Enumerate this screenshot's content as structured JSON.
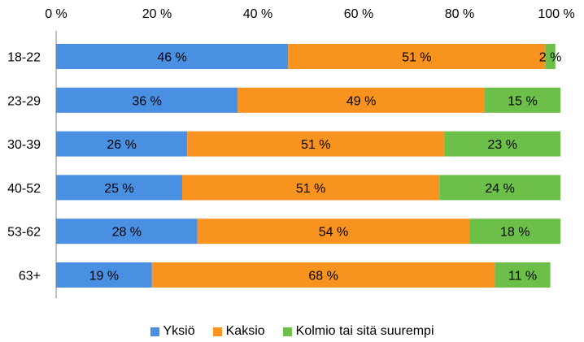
{
  "chart_data": {
    "type": "bar",
    "orientation": "horizontal",
    "stacked": true,
    "categories": [
      "18-22",
      "23-29",
      "30-39",
      "40-52",
      "53-62",
      "63+"
    ],
    "series": [
      {
        "name": "Yksiö",
        "color": "#4a90e2",
        "values": [
          46,
          36,
          26,
          25,
          28,
          19
        ],
        "labels": [
          "46 %",
          "36 %",
          "26 %",
          "25 %",
          "28 %",
          "19 %"
        ]
      },
      {
        "name": "Kaksio",
        "color": "#f7931e",
        "values": [
          51,
          49,
          51,
          51,
          54,
          68
        ],
        "labels": [
          "51 %",
          "49 %",
          "51 %",
          "51 %",
          "54 %",
          "68 %"
        ]
      },
      {
        "name": "Kolmio tai sitä suurempi",
        "color": "#6cc04a",
        "values": [
          2,
          15,
          23,
          24,
          18,
          11
        ],
        "labels": [
          "2 %",
          "15 %",
          "23 %",
          "24 %",
          "18 %",
          "11 %"
        ]
      }
    ],
    "xaxis": {
      "ticks": [
        0,
        20,
        40,
        60,
        80,
        100
      ],
      "tick_labels": [
        "0 %",
        "20 %",
        "40 %",
        "60 %",
        "80 %",
        "100 %"
      ],
      "range": [
        0,
        100
      ],
      "position": "top"
    },
    "grid": false,
    "legend_position": "bottom"
  }
}
